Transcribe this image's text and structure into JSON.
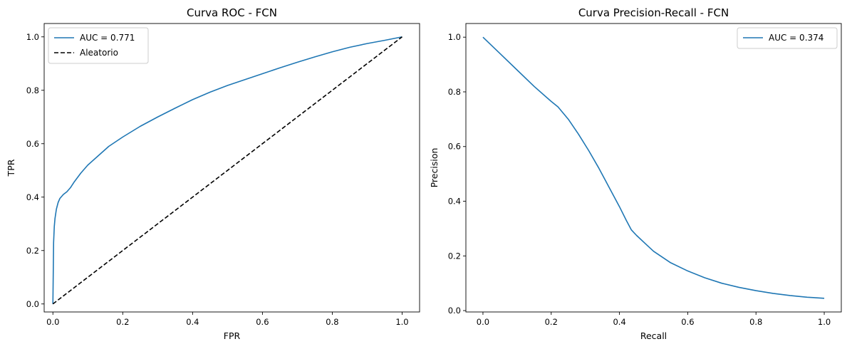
{
  "chart_data": [
    {
      "type": "line",
      "title": "Curva ROC - FCN",
      "xlabel": "FPR",
      "ylabel": "TPR",
      "xlim": [
        -0.025,
        1.05
      ],
      "ylim": [
        -0.03,
        1.05
      ],
      "xticks": [
        0.0,
        0.2,
        0.4,
        0.6,
        0.8,
        1.0
      ],
      "yticks": [
        0.0,
        0.2,
        0.4,
        0.6,
        0.8,
        1.0
      ],
      "tick_labels_x": [
        "0.0",
        "0.2",
        "0.4",
        "0.6",
        "0.8",
        "1.0"
      ],
      "tick_labels_y": [
        "0.0",
        "0.2",
        "0.4",
        "0.6",
        "0.8",
        "1.0"
      ],
      "grid": false,
      "legend_position": "upper-left",
      "series": [
        {
          "name": "AUC = 0.771",
          "color": "#1f77b4",
          "style": "solid",
          "x": [
            0.0,
            0.002,
            0.004,
            0.006,
            0.01,
            0.015,
            0.02,
            0.03,
            0.04,
            0.05,
            0.06,
            0.08,
            0.1,
            0.13,
            0.16,
            0.2,
            0.25,
            0.3,
            0.35,
            0.4,
            0.45,
            0.5,
            0.55,
            0.6,
            0.65,
            0.7,
            0.75,
            0.8,
            0.85,
            0.9,
            0.95,
            1.0
          ],
          "y": [
            0.0,
            0.23,
            0.29,
            0.32,
            0.355,
            0.38,
            0.395,
            0.41,
            0.42,
            0.435,
            0.455,
            0.49,
            0.52,
            0.555,
            0.59,
            0.625,
            0.665,
            0.7,
            0.733,
            0.765,
            0.793,
            0.818,
            0.84,
            0.862,
            0.884,
            0.905,
            0.925,
            0.944,
            0.961,
            0.975,
            0.987,
            1.0
          ]
        },
        {
          "name": "Aleatorio",
          "color": "#000000",
          "style": "dashed",
          "x": [
            0.0,
            1.0
          ],
          "y": [
            0.0,
            1.0
          ]
        }
      ]
    },
    {
      "type": "line",
      "title": "Curva Precision-Recall - FCN",
      "xlabel": "Recall",
      "ylabel": "Precision",
      "xlim": [
        -0.05,
        1.05
      ],
      "ylim": [
        -0.005,
        1.05
      ],
      "xticks": [
        0.0,
        0.2,
        0.4,
        0.6,
        0.8,
        1.0
      ],
      "yticks": [
        0.0,
        0.2,
        0.4,
        0.6,
        0.8,
        1.0
      ],
      "tick_labels_x": [
        "0.0",
        "0.2",
        "0.4",
        "0.6",
        "0.8",
        "1.0"
      ],
      "tick_labels_y": [
        "0.0",
        "0.2",
        "0.4",
        "0.6",
        "0.8",
        "1.0"
      ],
      "grid": false,
      "legend_position": "upper-right",
      "series": [
        {
          "name": "AUC = 0.374",
          "color": "#1f77b4",
          "style": "solid",
          "x": [
            0.0,
            0.05,
            0.1,
            0.15,
            0.2,
            0.22,
            0.25,
            0.28,
            0.31,
            0.34,
            0.37,
            0.4,
            0.42,
            0.435,
            0.45,
            0.48,
            0.5,
            0.55,
            0.6,
            0.65,
            0.7,
            0.75,
            0.8,
            0.85,
            0.9,
            0.95,
            1.0
          ],
          "y": [
            1.0,
            0.94,
            0.88,
            0.82,
            0.765,
            0.745,
            0.7,
            0.645,
            0.585,
            0.52,
            0.45,
            0.38,
            0.33,
            0.295,
            0.275,
            0.24,
            0.217,
            0.175,
            0.145,
            0.12,
            0.1,
            0.085,
            0.073,
            0.063,
            0.055,
            0.049,
            0.045
          ]
        }
      ]
    }
  ]
}
